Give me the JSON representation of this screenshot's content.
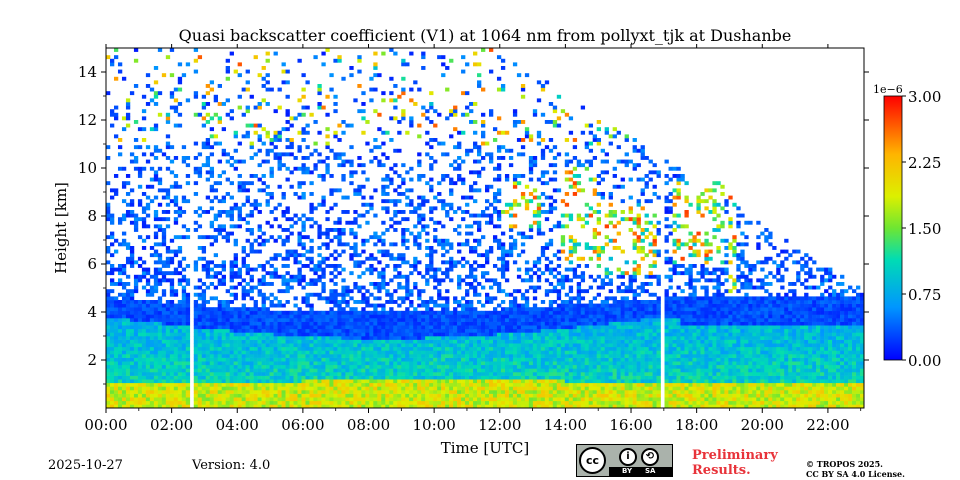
{
  "chart_data": {
    "type": "heatmap",
    "title": "Quasi backscatter coefficient (V1) at 1064 nm from pollyxt_tjk at Dushanbe",
    "xlabel": "Time [UTC]",
    "ylabel": "Height [km]",
    "x_ticks": [
      "00:00",
      "02:00",
      "04:00",
      "06:00",
      "08:00",
      "10:00",
      "12:00",
      "14:00",
      "16:00",
      "18:00",
      "20:00",
      "22:00"
    ],
    "y_ticks": [
      "2",
      "4",
      "6",
      "8",
      "10",
      "12",
      "14"
    ],
    "xlim_hours": [
      0,
      23.1
    ],
    "ylim_km": [
      0,
      15
    ],
    "colorbar": {
      "multiplier": "1e−6",
      "ticks": [
        "0.00",
        "0.75",
        "1.50",
        "2.25",
        "3.00"
      ],
      "range": [
        0,
        3.0
      ],
      "colormap": "jet"
    },
    "layers": [
      {
        "description": "aerosol layer near surface",
        "height_km": [
          0,
          1.0
        ],
        "approx_value": 2.0
      },
      {
        "description": "boundary layer",
        "height_km": [
          1.0,
          3.8
        ],
        "approx_value": 1.1
      },
      {
        "description": "residual layer top",
        "height_km": [
          3.8,
          4.6
        ],
        "approx_value": 0.3
      }
    ],
    "data_gaps_hours": [
      [
        2.55,
        2.7
      ],
      [
        16.85,
        17.0
      ]
    ],
    "clouds": [
      {
        "time_hours": [
          12.0,
          13.2
        ],
        "height_km": [
          7.5,
          9.5
        ]
      },
      {
        "time_hours": [
          13.8,
          15.0
        ],
        "height_km": [
          6.0,
          10.0
        ]
      },
      {
        "time_hours": [
          15.0,
          16.8
        ],
        "height_km": [
          5.5,
          8.5
        ]
      },
      {
        "time_hours": [
          17.3,
          18.8
        ],
        "height_km": [
          6.0,
          9.5
        ]
      },
      {
        "time_hours": [
          19.0,
          19.2
        ],
        "height_km": [
          4.0,
          9.0
        ]
      }
    ]
  },
  "footer": {
    "date": "2025-10-27",
    "version": "Version: 4.0",
    "preliminary_line1": "Preliminary",
    "preliminary_line2": "Results.",
    "copyright_line1": "© TROPOS 2025.",
    "copyright_line2": "CC BY SA 4.0 License."
  },
  "license_badge": {
    "cc": "cc",
    "by": "BY",
    "sa": "SA"
  }
}
